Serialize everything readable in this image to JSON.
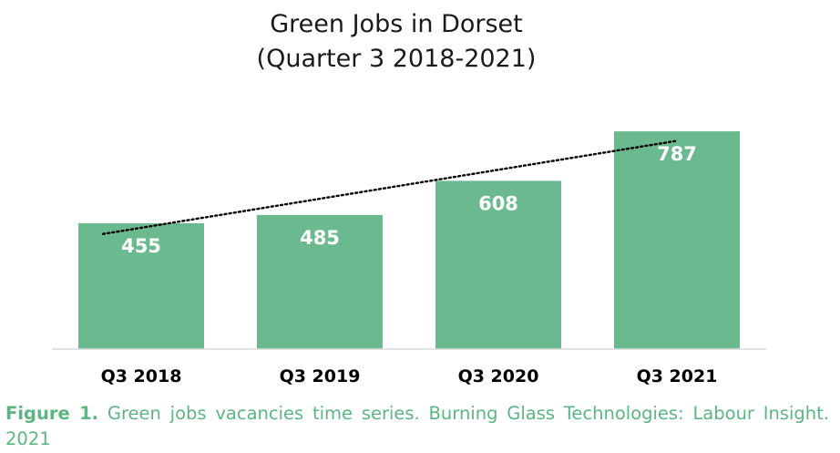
{
  "caption": {
    "label": "Figure 1.",
    "text": "Green jobs vacancies time series. Burning Glass Technologies: Labour Insight. 2021"
  },
  "chart_data": {
    "type": "bar",
    "title": "Green Jobs in Dorset",
    "subtitle": "(Quarter 3 2018-2021)",
    "categories": [
      "Q3 2018",
      "Q3 2019",
      "Q3 2020",
      "Q3 2021"
    ],
    "values": [
      455,
      485,
      608,
      787
    ],
    "data_labels": [
      "455",
      "485",
      "608",
      "787"
    ],
    "xlabel": "",
    "ylabel": "",
    "ylim": [
      0,
      900
    ],
    "y_axis_visible": false,
    "grid": false,
    "legend": "none",
    "trendline": "linear",
    "bar_color": "#6bba8f",
    "trendline_color": "#000000",
    "axis_color": "#d9d9d9"
  }
}
